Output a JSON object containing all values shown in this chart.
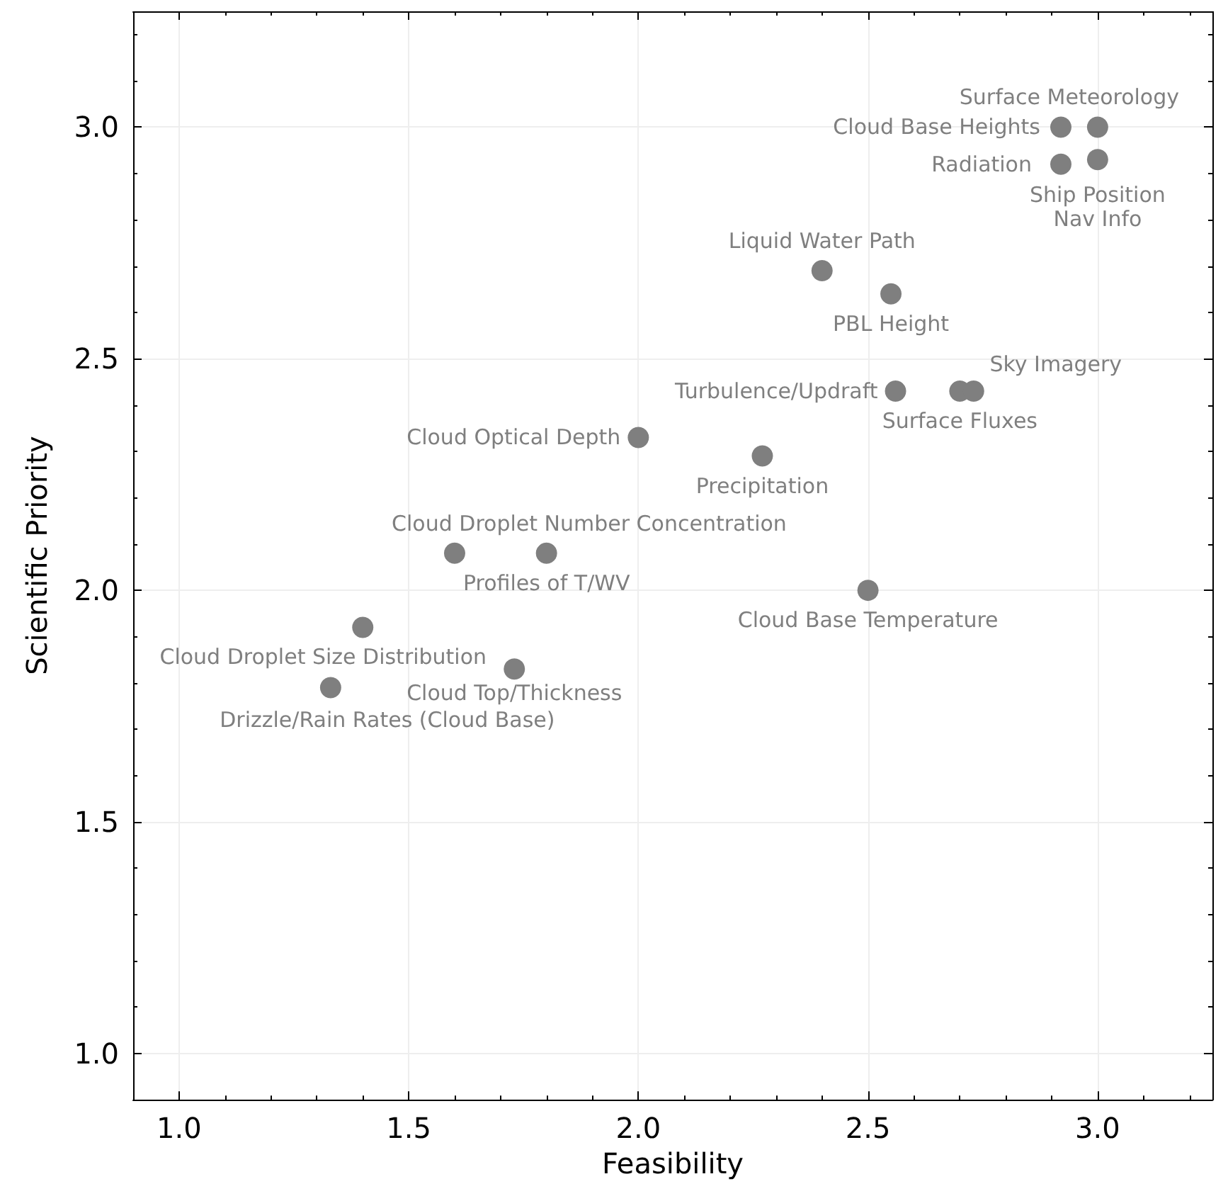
{
  "chart_data": {
    "type": "scatter",
    "xlabel": "Feasibility",
    "ylabel": "Scientific Priority",
    "x": [
      3.0,
      2.92,
      2.92,
      3.0,
      2.4,
      2.55,
      2.56,
      2.7,
      2.73,
      2.0,
      2.27,
      1.6,
      1.8,
      2.5,
      1.4,
      1.73,
      1.33
    ],
    "series": [
      {
        "color": "#7f7f7f",
        "values": [
          3.0,
          3.0,
          2.92,
          2.93,
          2.69,
          2.64,
          2.43,
          2.43,
          2.43,
          2.33,
          2.29,
          2.08,
          2.08,
          2.0,
          1.92,
          1.83,
          1.79
        ]
      }
    ],
    "annotations": [
      {
        "text": "Surface Meteorology",
        "x": 3.0,
        "y": 3.0
      },
      {
        "text": "Cloud Base Heights",
        "x": 2.92,
        "y": 3.0
      },
      {
        "text": "Radiation",
        "x": 2.92,
        "y": 2.92
      },
      {
        "text": "Ship Position\nNav Info",
        "x": 3.0,
        "y": 2.93
      },
      {
        "text": "Liquid Water Path",
        "x": 2.4,
        "y": 2.69
      },
      {
        "text": "PBL Height",
        "x": 2.55,
        "y": 2.64
      },
      {
        "text": "Turbulence/Updraft",
        "x": 2.56,
        "y": 2.43
      },
      {
        "text": "Surface Fluxes",
        "x": 2.7,
        "y": 2.43
      },
      {
        "text": "Sky Imagery",
        "x": 2.73,
        "y": 2.43
      },
      {
        "text": "Cloud Optical Depth",
        "x": 2.0,
        "y": 2.33
      },
      {
        "text": "Precipitation",
        "x": 2.27,
        "y": 2.29
      },
      {
        "text": "Cloud Droplet Number Concentration",
        "x": 1.6,
        "y": 2.08
      },
      {
        "text": "Profiles of T/WV",
        "x": 1.8,
        "y": 2.08
      },
      {
        "text": "Cloud Base Temperature",
        "x": 2.5,
        "y": 2.0
      },
      {
        "text": "Cloud Droplet Size Distribution",
        "x": 1.4,
        "y": 1.92
      },
      {
        "text": "Cloud Top/Thickness",
        "x": 1.73,
        "y": 1.83
      },
      {
        "text": "Drizzle/Rain Rates (Cloud Base)",
        "x": 1.33,
        "y": 1.79
      }
    ],
    "xlim": [
      0.9,
      3.25
    ],
    "ylim": [
      0.9,
      3.25
    ],
    "xticks": [
      {
        "value": 1,
        "label": "1.0"
      },
      {
        "value": 1.5,
        "label": "1.5"
      },
      {
        "value": 2,
        "label": "2.0"
      },
      {
        "value": 2.5,
        "label": "2.5"
      },
      {
        "value": 3,
        "label": "3.0"
      }
    ],
    "yticks": [
      {
        "value": 1,
        "label": "1.0"
      },
      {
        "value": 1.5,
        "label": "1.5"
      },
      {
        "value": 2,
        "label": "2.0"
      },
      {
        "value": 2.5,
        "label": "2.5"
      },
      {
        "value": 3,
        "label": "3.0"
      }
    ],
    "grid": true,
    "marker": "circle"
  }
}
